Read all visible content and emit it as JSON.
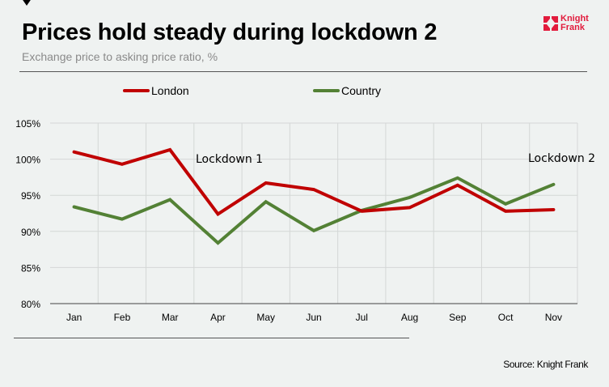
{
  "header": {
    "title": "Prices hold steady during lockdown 2",
    "subtitle": "Exchange price to asking price ratio, %"
  },
  "logo": {
    "line1": "Knight",
    "line2": "Frank",
    "icon": "knight-frank-logo-icon",
    "color": "#e21b3c"
  },
  "footer": {
    "source": "Source: Knight Frank"
  },
  "chart_data": {
    "type": "line",
    "title": "Prices hold steady during lockdown 2",
    "subtitle": "Exchange price to asking price ratio, %",
    "xlabel": "",
    "ylabel": "",
    "categories": [
      "Jan",
      "Feb",
      "Mar",
      "Apr",
      "May",
      "Jun",
      "Jul",
      "Aug",
      "Sep",
      "Oct",
      "Nov"
    ],
    "ylim": [
      80,
      105
    ],
    "yticks": [
      80,
      85,
      90,
      95,
      100,
      105
    ],
    "ytick_labels": [
      "80%",
      "85%",
      "90%",
      "95%",
      "100%",
      "105%"
    ],
    "grid": true,
    "legend_position": "top",
    "series": [
      {
        "name": "London",
        "color": "#c00000",
        "values": [
          101.0,
          99.3,
          101.3,
          92.4,
          96.7,
          95.8,
          92.8,
          93.3,
          96.4,
          92.8,
          93.0
        ]
      },
      {
        "name": "Country",
        "color": "#538135",
        "values": [
          93.4,
          91.7,
          94.4,
          88.4,
          94.1,
          90.1,
          92.9,
          94.7,
          97.4,
          93.8,
          96.5
        ]
      }
    ],
    "annotations": [
      {
        "text": "Lockdown 1",
        "x": "Apr",
        "y": 100
      },
      {
        "text": "Lockdown 2",
        "x": "Nov",
        "y": 100
      }
    ]
  }
}
